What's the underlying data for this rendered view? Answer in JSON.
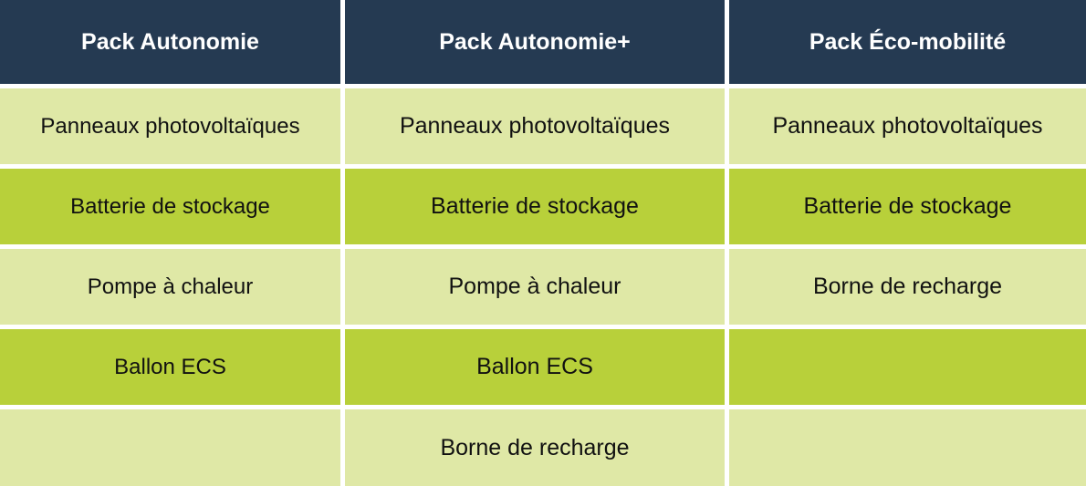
{
  "headers": [
    "Pack Autonomie",
    "Pack Autonomie+",
    "Pack Éco-mobilité"
  ],
  "rows": [
    [
      "Panneaux photovoltaïques",
      "Panneaux photovoltaïques",
      "Panneaux photovoltaïques"
    ],
    [
      "Batterie de stockage",
      "Batterie de stockage",
      "Batterie de stockage"
    ],
    [
      "Pompe à chaleur",
      "Pompe à chaleur",
      "Borne de recharge"
    ],
    [
      "Ballon ECS",
      "Ballon ECS",
      ""
    ],
    [
      "",
      "Borne de recharge",
      ""
    ]
  ],
  "colors": {
    "header": "#253a52",
    "row_light": "#dfe8a6",
    "row_dark": "#b8d03a"
  }
}
